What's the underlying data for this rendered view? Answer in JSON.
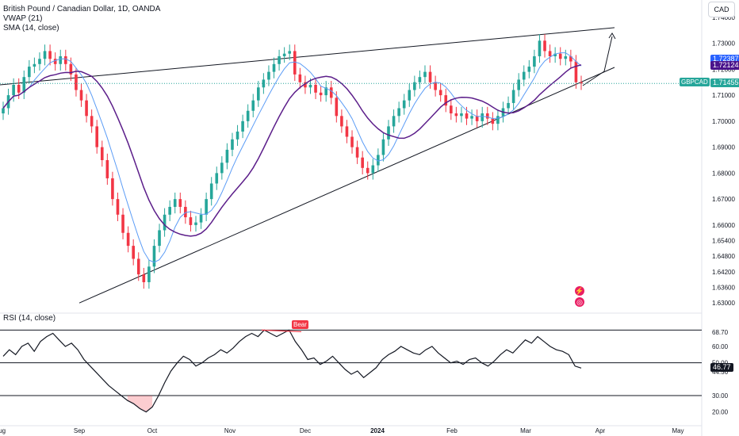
{
  "legend": {
    "title": "British Pound / Canadian Dollar, 1D, OANDA",
    "vwap": "VWAP (21)",
    "sma": "SMA (14, close)",
    "rsi": "RSI (14, close)"
  },
  "currency_button": "CAD",
  "symbol_badge": "GBPCAD",
  "bear_label": "Bear",
  "icons": [
    "lightning-icon",
    "globe-icon"
  ],
  "colors": {
    "up": "#26a69a",
    "down": "#f23645",
    "vwap": "#5b9cf6",
    "sma": "#5c1e8a",
    "trend": "#131722",
    "rsi": "#131722"
  },
  "price_badges": [
    {
      "label": "1.72387",
      "value": 1.72387,
      "color": "#2962ff"
    },
    {
      "label": "1.72124",
      "value": 1.72124,
      "color": "#4a148c"
    },
    {
      "label": "1.71455",
      "value": 1.71455,
      "color": "#26a69a"
    }
  ],
  "rsi_badge": {
    "label": "46.77",
    "value": 46.77,
    "color": "#131722"
  },
  "chart_data": [
    {
      "type": "candlestick",
      "title": "British Pound / Canadian Dollar, 1D, OANDA",
      "y_axis_ticks": [
        "1.74000",
        "1.73000",
        "1.72000",
        "1.71000",
        "1.70000",
        "1.69000",
        "1.68000",
        "1.67000",
        "1.66000",
        "1.65400",
        "1.64800",
        "1.64200",
        "1.63600",
        "1.63000"
      ],
      "x_axis_labels": [
        "Aug",
        "Sep",
        "Oct",
        "Nov",
        "Dec",
        "2024",
        "Feb",
        "Mar",
        "Apr",
        "May"
      ],
      "last_close": 1.71455,
      "close_series": [
        1.705,
        1.71,
        1.714,
        1.711,
        1.717,
        1.721,
        1.722,
        1.724,
        1.727,
        1.724,
        1.722,
        1.725,
        1.722,
        1.718,
        1.712,
        1.708,
        1.702,
        1.698,
        1.69,
        1.685,
        1.678,
        1.67,
        1.664,
        1.657,
        1.652,
        1.647,
        1.641,
        1.638,
        1.644,
        1.652,
        1.658,
        1.664,
        1.667,
        1.67,
        1.667,
        1.663,
        1.66,
        1.661,
        1.664,
        1.67,
        1.676,
        1.68,
        1.684,
        1.689,
        1.693,
        1.696,
        1.7,
        1.704,
        1.708,
        1.713,
        1.716,
        1.719,
        1.722,
        1.725,
        1.726,
        1.727,
        1.718,
        1.715,
        1.713,
        1.714,
        1.711,
        1.71,
        1.713,
        1.709,
        1.702,
        1.698,
        1.694,
        1.69,
        1.686,
        1.682,
        1.68,
        1.683,
        1.687,
        1.693,
        1.698,
        1.702,
        1.705,
        1.708,
        1.712,
        1.715,
        1.717,
        1.719,
        1.715,
        1.712,
        1.71,
        1.706,
        1.703,
        1.702,
        1.703,
        1.701,
        1.702,
        1.7,
        1.703,
        1.701,
        1.699,
        1.702,
        1.705,
        1.707,
        1.712,
        1.716,
        1.719,
        1.721,
        1.725,
        1.731,
        1.727,
        1.725,
        1.726,
        1.724,
        1.725,
        1.723,
        1.715,
        1.7145
      ],
      "sma_14": {
        "name": "SMA (14, close)"
      },
      "vwap_21": {
        "name": "VWAP (21)"
      },
      "trendlines": [
        {
          "from": {
            "x": "Aug",
            "y": 1.714
          },
          "to": {
            "x": "Mar",
            "y": 1.736
          }
        },
        {
          "from": {
            "x": "Aug",
            "y": 1.63
          },
          "to": {
            "x": "Mar",
            "y": 1.714
          }
        }
      ]
    },
    {
      "type": "line",
      "title": "RSI (14, close)",
      "y_axis_ticks": [
        "68.70",
        "60.00",
        "50.00",
        "44.56",
        "30.00",
        "20.00"
      ],
      "levels": [
        70,
        50,
        30
      ],
      "last_value": 46.77,
      "values": [
        54,
        58,
        55,
        60,
        62,
        57,
        63,
        66,
        68,
        64,
        60,
        62,
        58,
        52,
        48,
        44,
        40,
        36,
        33,
        30,
        27,
        25,
        22,
        20,
        23,
        30,
        38,
        45,
        50,
        54,
        52,
        48,
        50,
        53,
        55,
        58,
        56,
        59,
        63,
        66,
        68,
        66,
        70,
        68,
        66,
        68,
        70,
        63,
        58,
        52,
        53,
        49,
        51,
        54,
        50,
        46,
        43,
        45,
        41,
        44,
        47,
        52,
        55,
        57,
        60,
        58,
        56,
        55,
        58,
        60,
        56,
        53,
        50,
        51,
        49,
        52,
        53,
        50,
        48,
        51,
        55,
        58,
        56,
        60,
        64,
        62,
        66,
        63,
        60,
        58,
        57,
        55,
        48,
        46.77
      ],
      "divergence": {
        "label": "Bear"
      }
    }
  ]
}
